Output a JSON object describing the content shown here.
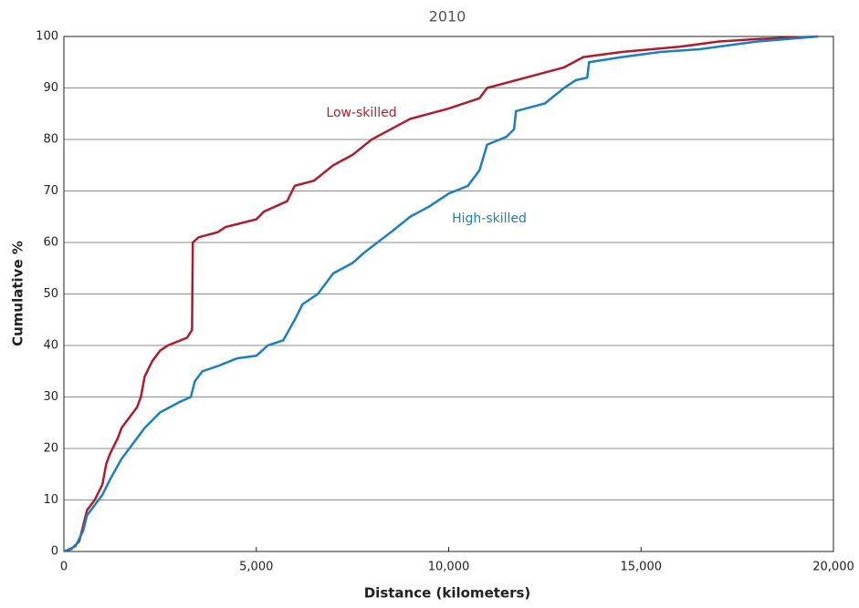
{
  "chart_data": {
    "type": "line",
    "title": "2010",
    "xlabel": "Distance (kilometers)",
    "ylabel": "Cumulative %",
    "annotations": [
      "Low-skilled",
      "High-skilled"
    ],
    "xlim": [
      0,
      20000
    ],
    "ylim": [
      0,
      100
    ],
    "xticks": [
      0,
      {
        "value": 5000,
        "label": "5,000"
      },
      {
        "value": 10000,
        "label": "10,000"
      },
      {
        "value": 15000,
        "label": "15,000"
      },
      {
        "value": 20000,
        "label": "20,000"
      }
    ],
    "yticks": [
      0,
      10,
      20,
      30,
      40,
      50,
      60,
      70,
      80,
      90,
      100
    ],
    "grid": true,
    "series": [
      {
        "name": "Low-skilled",
        "color": "#b01c2e",
        "x": [
          0,
          200,
          400,
          500,
          600,
          800,
          1000,
          1100,
          1200,
          1400,
          1500,
          1700,
          1900,
          2000,
          2100,
          2300,
          2500,
          2700,
          3200,
          3330,
          3350,
          3500,
          4000,
          4200,
          5000,
          5200,
          5800,
          6000,
          6500,
          7000,
          7500,
          8000,
          8500,
          9000,
          10000,
          10800,
          11000,
          12000,
          13000,
          13500,
          14500,
          16000,
          17000,
          18000,
          19600
        ],
        "values": [
          0,
          0.5,
          2,
          5,
          8,
          10,
          13,
          17,
          19,
          22,
          24,
          26,
          28,
          30,
          34,
          37,
          39,
          40,
          41.5,
          43,
          60,
          61,
          62,
          63,
          64.5,
          66,
          68,
          71,
          72,
          75,
          77,
          80,
          82,
          84,
          86,
          88,
          90,
          92,
          94,
          96,
          97,
          98,
          99,
          99.5,
          100
        ]
      },
      {
        "name": "High-skilled",
        "color": "#1a7fc1",
        "x": [
          0,
          300,
          500,
          600,
          800,
          1000,
          1200,
          1500,
          1800,
          2100,
          2500,
          3000,
          3300,
          3400,
          3600,
          4000,
          4500,
          5000,
          5300,
          5700,
          6000,
          6200,
          6600,
          7000,
          7500,
          7800,
          8500,
          9000,
          9500,
          10000,
          10500,
          10800,
          11000,
          11500,
          11700,
          11750,
          12500,
          13000,
          13300,
          13600,
          13650,
          14500,
          15500,
          16500,
          17000,
          18000,
          19600
        ],
        "values": [
          0,
          1,
          4,
          7,
          9,
          11,
          14,
          18,
          21,
          24,
          27,
          29,
          30,
          33,
          35,
          36,
          37.5,
          38,
          40,
          41,
          45,
          48,
          50,
          54,
          56,
          58,
          62,
          65,
          67,
          69.5,
          71,
          74,
          79,
          80.5,
          82,
          85.5,
          87,
          90,
          91.5,
          92,
          95,
          96,
          97,
          97.5,
          98,
          99,
          100
        ]
      }
    ]
  }
}
